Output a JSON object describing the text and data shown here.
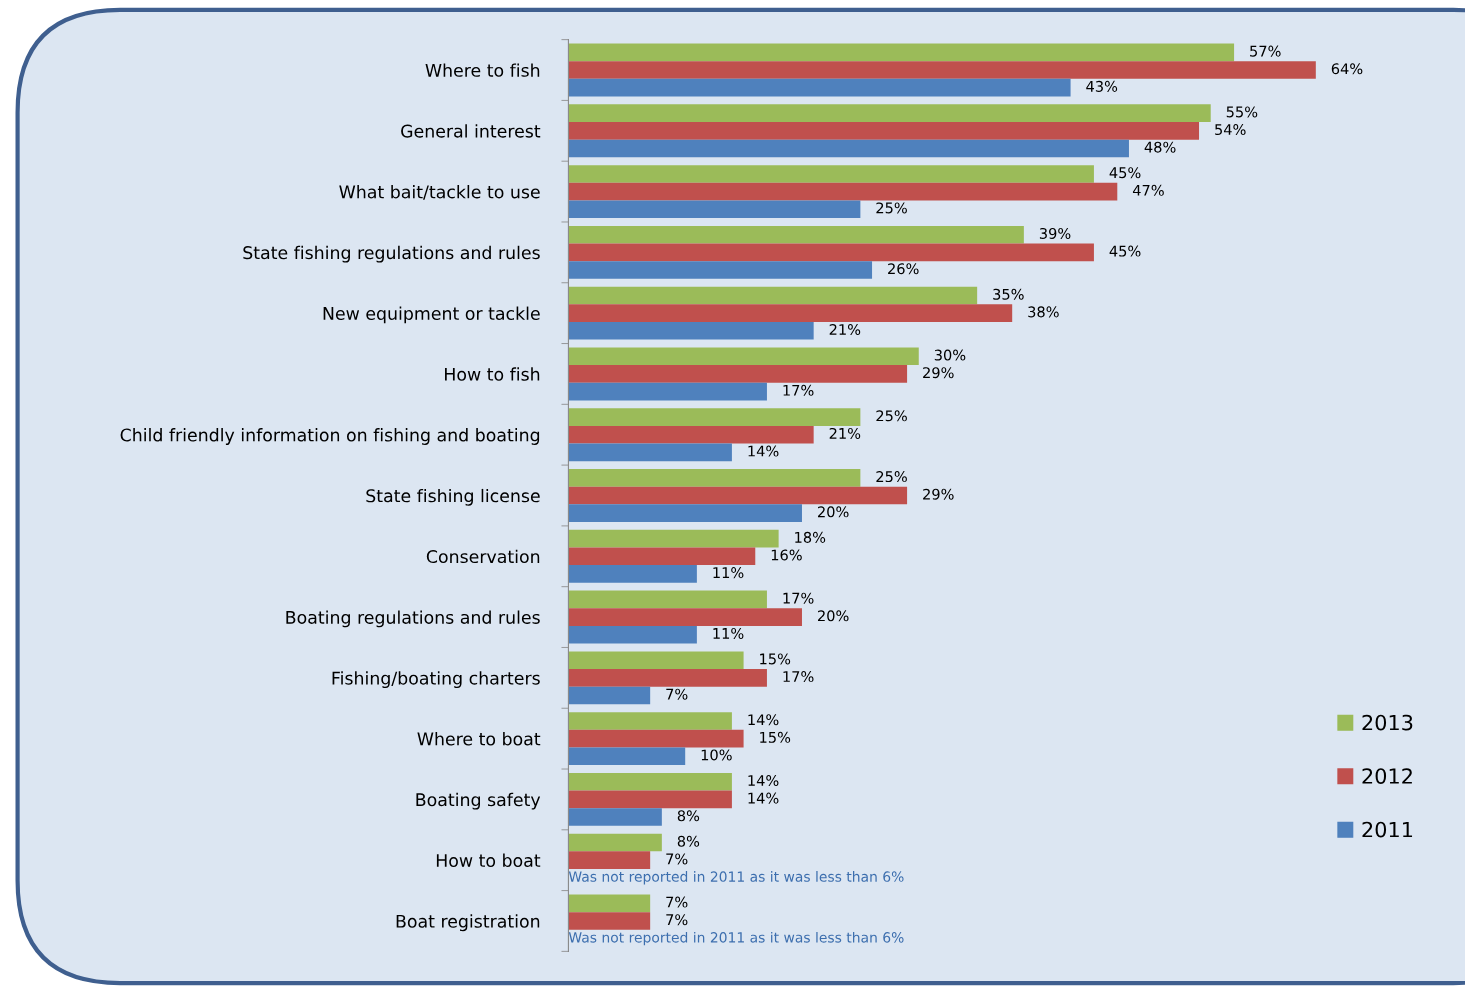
{
  "chart_data": {
    "type": "bar",
    "orientation": "horizontal",
    "categories": [
      "Where to fish",
      "General interest",
      "What bait/tackle to use",
      "State fishing regulations and rules",
      "New equipment or tackle",
      "How to fish",
      "Child friendly information on fishing and boating",
      "State fishing license",
      "Conservation",
      "Boating regulations and rules",
      "Fishing/boating charters",
      "Where to boat",
      "Boating safety",
      "How to boat",
      "Boat registration"
    ],
    "series": [
      {
        "name": "2013",
        "color": "#9bbb59",
        "values": [
          57,
          55,
          45,
          39,
          35,
          30,
          25,
          25,
          18,
          17,
          15,
          14,
          14,
          8,
          7
        ],
        "value_labels": [
          "57%",
          "55%",
          "45%",
          "39%",
          "35%",
          "30%",
          "25%",
          "25%",
          "18%",
          "17%",
          "15%",
          "14%",
          "14%",
          "8%",
          "7%"
        ]
      },
      {
        "name": "2012",
        "color": "#c0504d",
        "values": [
          64,
          54,
          47,
          45,
          38,
          29,
          21,
          29,
          16,
          20,
          17,
          15,
          14,
          7,
          7
        ],
        "value_labels": [
          "64%",
          "54%",
          "47%",
          "45%",
          "38%",
          "29%",
          "21%",
          "29%",
          "16%",
          "20%",
          "17%",
          "15%",
          "14%",
          "7%",
          "7%"
        ]
      },
      {
        "name": "2011",
        "color": "#4f81bd",
        "values": [
          43,
          48,
          25,
          26,
          21,
          17,
          14,
          20,
          11,
          11,
          7,
          10,
          8,
          null,
          null
        ],
        "value_labels": [
          "43%",
          "48%",
          "25%",
          "26%",
          "21%",
          "17%",
          "14%",
          "20%",
          "11%",
          "11%",
          "7%",
          "10%",
          "8%",
          null,
          null
        ]
      }
    ],
    "annotations": [
      "Was not reported in 2011 as it was less than 6%",
      "Was not reported in 2011 as it was less than 6%"
    ],
    "legend": "right",
    "grid": false
  }
}
